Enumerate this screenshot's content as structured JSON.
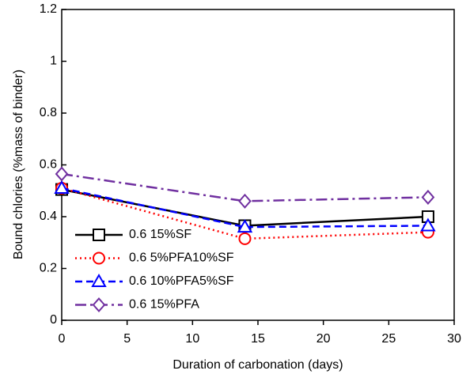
{
  "chart_data": {
    "type": "line",
    "x_label": "Duration of carbonation (days)",
    "y_label": "Bound chlories (%mass of binder)",
    "x": [
      0,
      14,
      28
    ],
    "series": [
      {
        "name": "0.6 15%SF",
        "color": "#000000",
        "linestyle": "solid",
        "marker": "square",
        "values": [
          0.505,
          0.365,
          0.4
        ]
      },
      {
        "name": "0.6 5%PFA10%SF",
        "color": "#ff0000",
        "linestyle": "dotted",
        "marker": "circle",
        "values": [
          0.51,
          0.315,
          0.34
        ]
      },
      {
        "name": "0.6 10%PFA5%SF",
        "color": "#0000ff",
        "linestyle": "dashed",
        "marker": "triangle",
        "values": [
          0.51,
          0.36,
          0.365
        ]
      },
      {
        "name": "0.6 15%PFA",
        "color": "#7030a0",
        "linestyle": "dashdot",
        "marker": "diamond",
        "values": [
          0.565,
          0.46,
          0.475
        ]
      }
    ],
    "xlim": [
      0,
      30
    ],
    "xticks": [
      0,
      5,
      10,
      15,
      20,
      25,
      30
    ],
    "ylim": [
      0,
      1.2
    ],
    "yticks": [
      0,
      0.2,
      0.4,
      0.6,
      0.8,
      1,
      1.2
    ],
    "grid": false,
    "legend": "lower-left"
  }
}
